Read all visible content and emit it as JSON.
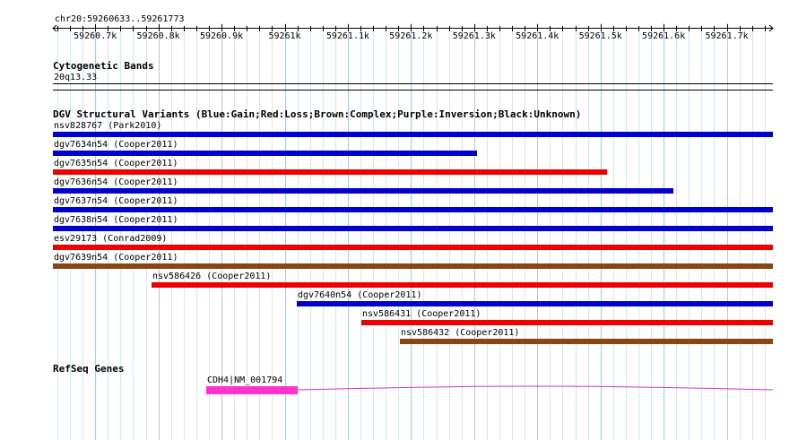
{
  "locus": "chr20:59260633..59261773",
  "ruler": {
    "start": 59260633,
    "end": 59261773,
    "ticks": [
      {
        "pos": 59260700,
        "label": "59260.7k"
      },
      {
        "pos": 59260800,
        "label": "59260.8k"
      },
      {
        "pos": 59260900,
        "label": "59260.9k"
      },
      {
        "pos": 59261000,
        "label": "59261k"
      },
      {
        "pos": 59261100,
        "label": "59261.1k"
      },
      {
        "pos": 59261200,
        "label": "59261.2k"
      },
      {
        "pos": 59261300,
        "label": "59261.3k"
      },
      {
        "pos": 59261400,
        "label": "59261.4k"
      },
      {
        "pos": 59261500,
        "label": "59261.5k"
      },
      {
        "pos": 59261600,
        "label": "59261.6k"
      },
      {
        "pos": 59261700,
        "label": "59261.7k"
      }
    ]
  },
  "cytoband": {
    "title": "Cytogenetic Bands",
    "band": "20q13.33"
  },
  "dgv": {
    "title": "DGV Structural Variants (Blue:Gain;Red:Loss;Brown:Complex;Purple:Inversion;Black:Unknown)",
    "colors": {
      "gain": "#0000cc",
      "loss": "#ee0000",
      "complex": "#8b4513"
    },
    "variants": [
      {
        "label": "nsv828767 (Park2010)",
        "type": "gain",
        "start": 59260633,
        "end": 59261773
      },
      {
        "label": "dgv7634n54 (Cooper2011)",
        "type": "gain",
        "start": 59260633,
        "end": 59261304
      },
      {
        "label": "dgv7635n54 (Cooper2011)",
        "type": "loss",
        "start": 59260633,
        "end": 59261511
      },
      {
        "label": "dgv7636n54 (Cooper2011)",
        "type": "gain",
        "start": 59260633,
        "end": 59261616
      },
      {
        "label": "dgv7637n54 (Cooper2011)",
        "type": "gain",
        "start": 59260633,
        "end": 59261773
      },
      {
        "label": "dgv7638n54 (Cooper2011)",
        "type": "gain",
        "start": 59260633,
        "end": 59261773
      },
      {
        "label": "esv29173 (Conrad2009)",
        "type": "loss",
        "start": 59260633,
        "end": 59261773
      },
      {
        "label": "dgv7639n54 (Cooper2011)",
        "type": "complex",
        "start": 59260633,
        "end": 59261773
      },
      {
        "label": "nsv586426 (Cooper2011)",
        "type": "loss",
        "start": 59260789,
        "end": 59261773
      },
      {
        "label": "dgv7640n54 (Cooper2011)",
        "type": "gain",
        "start": 59261019,
        "end": 59261773
      },
      {
        "label": "nsv586431 (Cooper2011)",
        "type": "loss",
        "start": 59261121,
        "end": 59261773
      },
      {
        "label": "nsv586432 (Cooper2011)",
        "type": "complex",
        "start": 59261183,
        "end": 59261773
      }
    ]
  },
  "refseq": {
    "title": "RefSeq Genes",
    "gene_label": "CDH4|NM_001794",
    "exon_color": "#ff33cc",
    "intron_color": "#cc33cc",
    "exon": {
      "start": 59260876,
      "end": 59261021
    },
    "intron": {
      "start": 59261021,
      "end": 59261773
    }
  }
}
